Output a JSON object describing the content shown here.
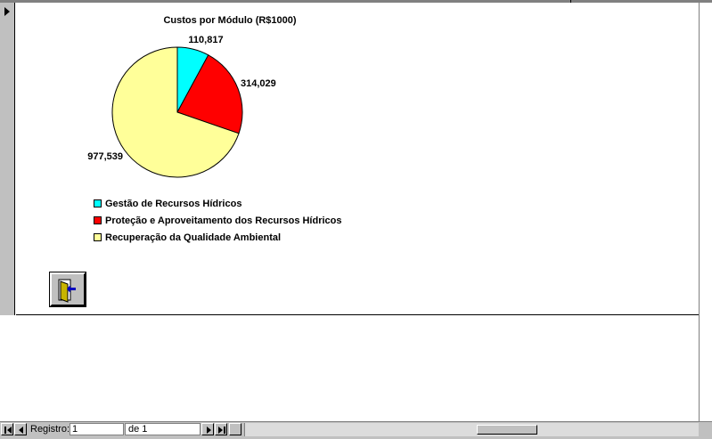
{
  "chart_data": {
    "type": "pie",
    "title": "Custos por Módulo (R$1000)",
    "categories": [
      "Gestão de Recursos Hídricos",
      "Proteção e Aproveitamento dos Recursos Hídricos",
      "Recuperação da Qualidade Ambiental"
    ],
    "values": [
      110817,
      314029,
      977539
    ],
    "value_labels": [
      "110,817",
      "314,029",
      "977,539"
    ],
    "colors": [
      "#00ffff",
      "#ff0000",
      "#ffff99"
    ],
    "legend_position": "bottom-left"
  },
  "exit_button": {
    "icon": "exit-door-icon"
  },
  "navigation": {
    "record_label": "Registro:",
    "current_record": "1",
    "of_label": "de  1"
  }
}
